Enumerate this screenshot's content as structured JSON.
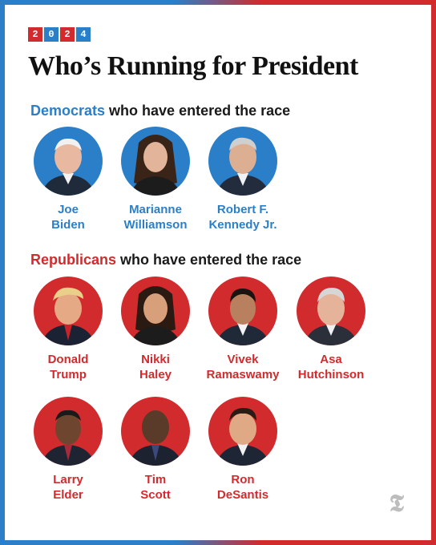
{
  "year_digits": [
    "2",
    "0",
    "2",
    "4"
  ],
  "year_colors": [
    "#d12b2e",
    "#2a7fc8",
    "#d12b2e",
    "#2a7fc8"
  ],
  "title": "Who’s Running for President",
  "colors": {
    "democrat": "#2a7fc8",
    "republican": "#d12b2e",
    "logo": "#bdbdbd"
  },
  "democrats": {
    "party": "Democrats",
    "heading_rest": " who have entered the race",
    "candidates": [
      {
        "line1": "Joe",
        "line2": "Biden"
      },
      {
        "line1": "Marianne",
        "line2": "Williamson"
      },
      {
        "line1": "Robert F.",
        "line2": "Kennedy Jr."
      }
    ]
  },
  "republicans": {
    "party": "Republicans",
    "heading_rest": " who have entered the race",
    "candidates": [
      {
        "line1": "Donald",
        "line2": "Trump"
      },
      {
        "line1": "Nikki",
        "line2": "Haley"
      },
      {
        "line1": "Vivek",
        "line2": "Ramaswamy"
      },
      {
        "line1": "Asa",
        "line2": "Hutchinson"
      },
      {
        "line1": "Larry",
        "line2": "Elder"
      },
      {
        "line1": "Tim",
        "line2": "Scott"
      },
      {
        "line1": "Ron",
        "line2": "DeSantis"
      }
    ]
  },
  "logo_icon": "nyt-t-logo-icon",
  "logo_glyph": "𝕿"
}
